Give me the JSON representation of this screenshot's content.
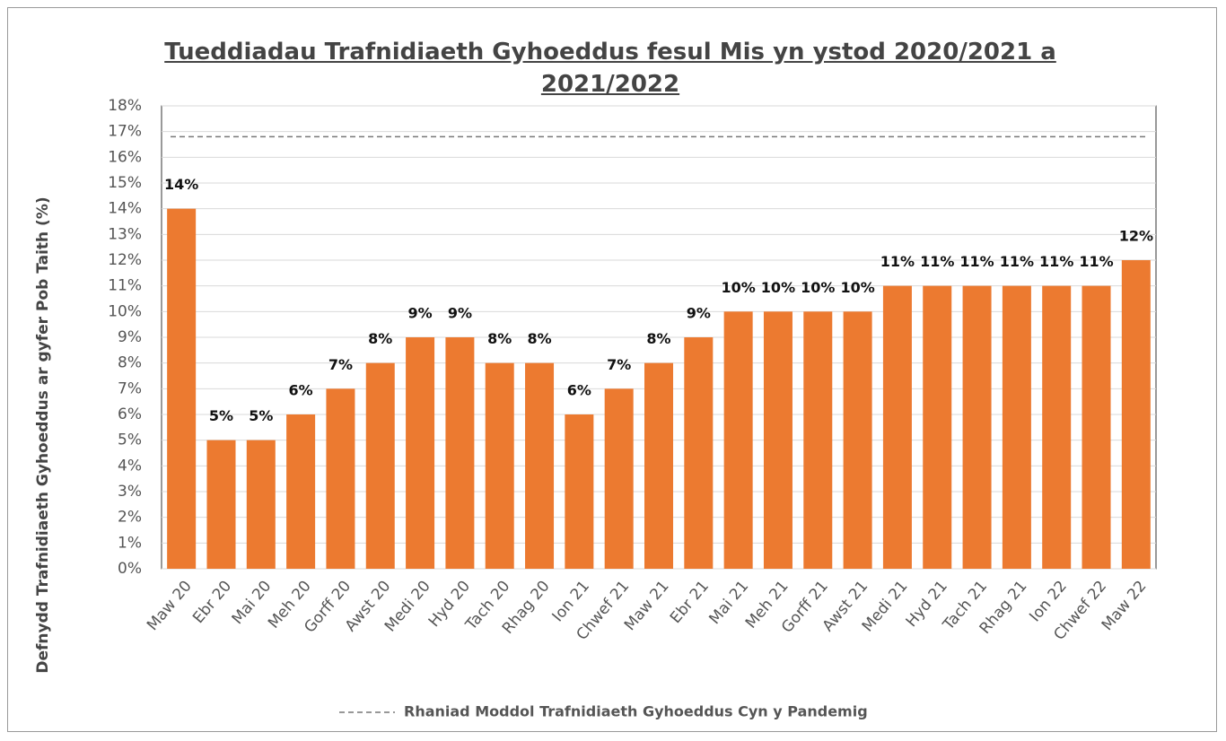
{
  "chart_data": {
    "type": "bar",
    "title": "Tueddiadau Trafnidiaeth Gyhoeddus fesul Mis yn ystod 2020/2021 a 2021/2022",
    "y_label": "Defnydd Trafnidiaeth Gyhoeddus ar gyfer Pob Taith (%)",
    "categories": [
      "Maw 20",
      "Ebr 20",
      "Mai 20",
      "Meh 20",
      "Gorff 20",
      "Awst 20",
      "Medi 20",
      "Hyd 20",
      "Tach 20",
      "Rhag 20",
      "Ion 21",
      "Chwef 21",
      "Maw 21",
      "Ebr 21",
      "Mai 21",
      "Meh 21",
      "Gorff 21",
      "Awst 21",
      "Medi 21",
      "Hyd 21",
      "Tach 21",
      "Rhag 21",
      "Ion 22",
      "Chwef 22",
      "Maw 22"
    ],
    "values": [
      14,
      5,
      5,
      6,
      7,
      8,
      9,
      9,
      8,
      8,
      6,
      7,
      8,
      9,
      10,
      10,
      10,
      10,
      11,
      11,
      11,
      11,
      11,
      11,
      12
    ],
    "value_labels": [
      "14%",
      "5%",
      "5%",
      "6%",
      "7%",
      "8%",
      "9%",
      "9%",
      "8%",
      "8%",
      "6%",
      "7%",
      "8%",
      "9%",
      "10%",
      "10%",
      "10%",
      "10%",
      "11%",
      "11%",
      "11%",
      "11%",
      "11%",
      "11%",
      "12%"
    ],
    "color": "#ec7a30",
    "ylim": [
      0,
      18
    ],
    "yticks": [
      {
        "value": 0,
        "label": "0%"
      },
      {
        "value": 1,
        "label": "1%"
      },
      {
        "value": 2,
        "label": "2%"
      },
      {
        "value": 3,
        "label": "3%"
      },
      {
        "value": 4,
        "label": "4%"
      },
      {
        "value": 5,
        "label": "5%"
      },
      {
        "value": 6,
        "label": "6%"
      },
      {
        "value": 7,
        "label": "7%"
      },
      {
        "value": 8,
        "label": "8%"
      },
      {
        "value": 9,
        "label": "9%"
      },
      {
        "value": 10,
        "label": "10%"
      },
      {
        "value": 11,
        "label": "11%"
      },
      {
        "value": 12,
        "label": "12%"
      },
      {
        "value": 13,
        "label": "13%"
      },
      {
        "value": 14,
        "label": "14%"
      },
      {
        "value": 15,
        "label": "15%"
      },
      {
        "value": 16,
        "label": "16%"
      },
      {
        "value": 17,
        "label": "17%"
      },
      {
        "value": 18,
        "label": "18%"
      }
    ],
    "grid": true,
    "reference_line": {
      "name": "Rhaniad Moddol Trafnidiaeth Gyhoeddus Cyn y Pandemig",
      "value": 16.8,
      "color": "#777777"
    }
  }
}
